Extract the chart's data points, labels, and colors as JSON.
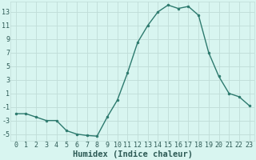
{
  "x": [
    0,
    1,
    2,
    3,
    4,
    5,
    6,
    7,
    8,
    9,
    10,
    11,
    12,
    13,
    14,
    15,
    16,
    17,
    18,
    19,
    20,
    21,
    22,
    23
  ],
  "y": [
    -2.0,
    -2.0,
    -2.5,
    -3.0,
    -3.0,
    -4.5,
    -5.0,
    -5.2,
    -5.3,
    -2.5,
    0.0,
    4.0,
    8.5,
    11.0,
    13.0,
    14.0,
    13.5,
    13.8,
    12.5,
    7.0,
    3.5,
    1.0,
    0.5,
    -0.8
  ],
  "line_color": "#2d7a6e",
  "marker_color": "#2d7a6e",
  "bg_color": "#d8f5f0",
  "grid_color": "#c0ddd8",
  "xlabel": "Humidex (Indice chaleur)",
  "ylim": [
    -6,
    14.5
  ],
  "yticks": [
    -5,
    -3,
    -1,
    1,
    3,
    5,
    7,
    9,
    11,
    13
  ],
  "xticks": [
    0,
    1,
    2,
    3,
    4,
    5,
    6,
    7,
    8,
    9,
    10,
    11,
    12,
    13,
    14,
    15,
    16,
    17,
    18,
    19,
    20,
    21,
    22,
    23
  ],
  "font_color": "#2d5a55",
  "tick_fontsize": 6.0,
  "label_fontsize": 7.5
}
